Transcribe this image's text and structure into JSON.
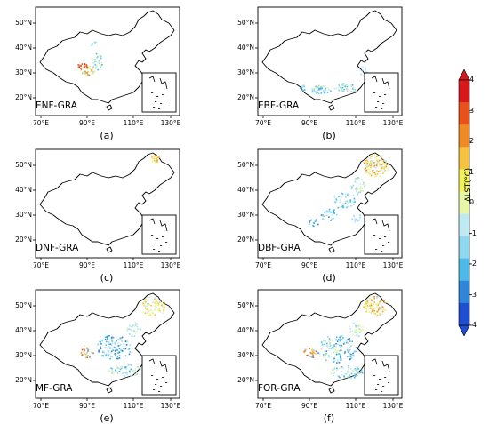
{
  "panels": [
    {
      "id": "a",
      "name": "ENF-GRA",
      "letter": "(a)"
    },
    {
      "id": "b",
      "name": "EBF-GRA",
      "letter": "(b)"
    },
    {
      "id": "c",
      "name": "DNF-GRA",
      "letter": "(c)"
    },
    {
      "id": "d",
      "name": "DBF-GRA",
      "letter": "(d)"
    },
    {
      "id": "e",
      "name": "MF-GRA",
      "letter": "(e)"
    },
    {
      "id": "f",
      "name": "FOR-GRA",
      "letter": "(f)"
    }
  ],
  "axis": {
    "x_ticks": [
      "70°E",
      "90°E",
      "110°E",
      "130°E"
    ],
    "y_ticks": [
      "50°N",
      "40°N",
      "30°N",
      "20°N"
    ]
  },
  "colorbar": {
    "title": "ΔLST(°C)",
    "ticks": [
      "4",
      "3",
      "2",
      "1",
      "0",
      "-1",
      "-2",
      "-3",
      "-4"
    ],
    "colors": [
      "#d7191c",
      "#e8511a",
      "#f08a24",
      "#f5c242",
      "#f2f25a",
      "#e8f6a8",
      "#bfeaf2",
      "#8fd8ee",
      "#4cb9e6",
      "#2f86d8",
      "#1f4fd0"
    ]
  }
}
